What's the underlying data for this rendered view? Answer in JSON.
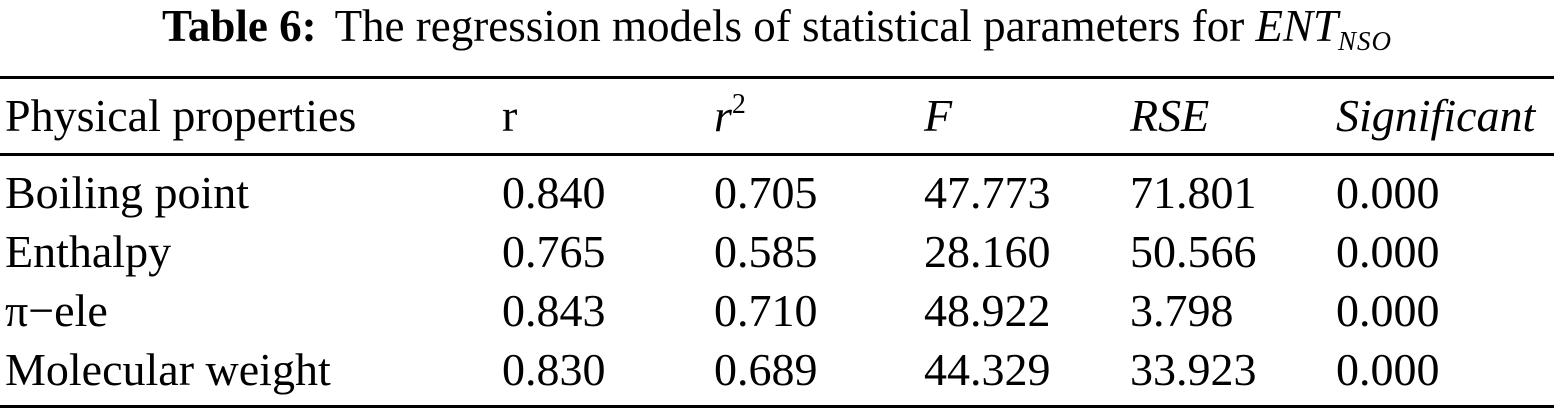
{
  "title": {
    "label": "Table 6:",
    "text": "The regression models of statistical parameters for",
    "symbol": "ENT",
    "symbol_sub": "NSO"
  },
  "table": {
    "columns": [
      {
        "label": "Physical properties"
      },
      {
        "label": "r"
      },
      {
        "label": "r",
        "sup": "2"
      },
      {
        "label": "F"
      },
      {
        "label": "RSE"
      },
      {
        "label": "Significant"
      }
    ],
    "rows": [
      {
        "property": "Boiling point",
        "r": "0.840",
        "r2": "0.705",
        "f": "47.773",
        "rse": "71.801",
        "significant": "0.000"
      },
      {
        "property": "Enthalpy",
        "r": "0.765",
        "r2": "0.585",
        "f": "28.160",
        "rse": "50.566",
        "significant": "0.000"
      },
      {
        "property": "π−ele",
        "r": "0.843",
        "r2": "0.710",
        "f": "48.922",
        "rse": "3.798",
        "significant": "0.000"
      },
      {
        "property": "Molecular weight",
        "r": "0.830",
        "r2": "0.689",
        "f": "44.329",
        "rse": "33.923",
        "significant": "0.000"
      }
    ]
  },
  "colors": {
    "text": "#000000",
    "background": "#ffffff",
    "rule": "#000000"
  }
}
